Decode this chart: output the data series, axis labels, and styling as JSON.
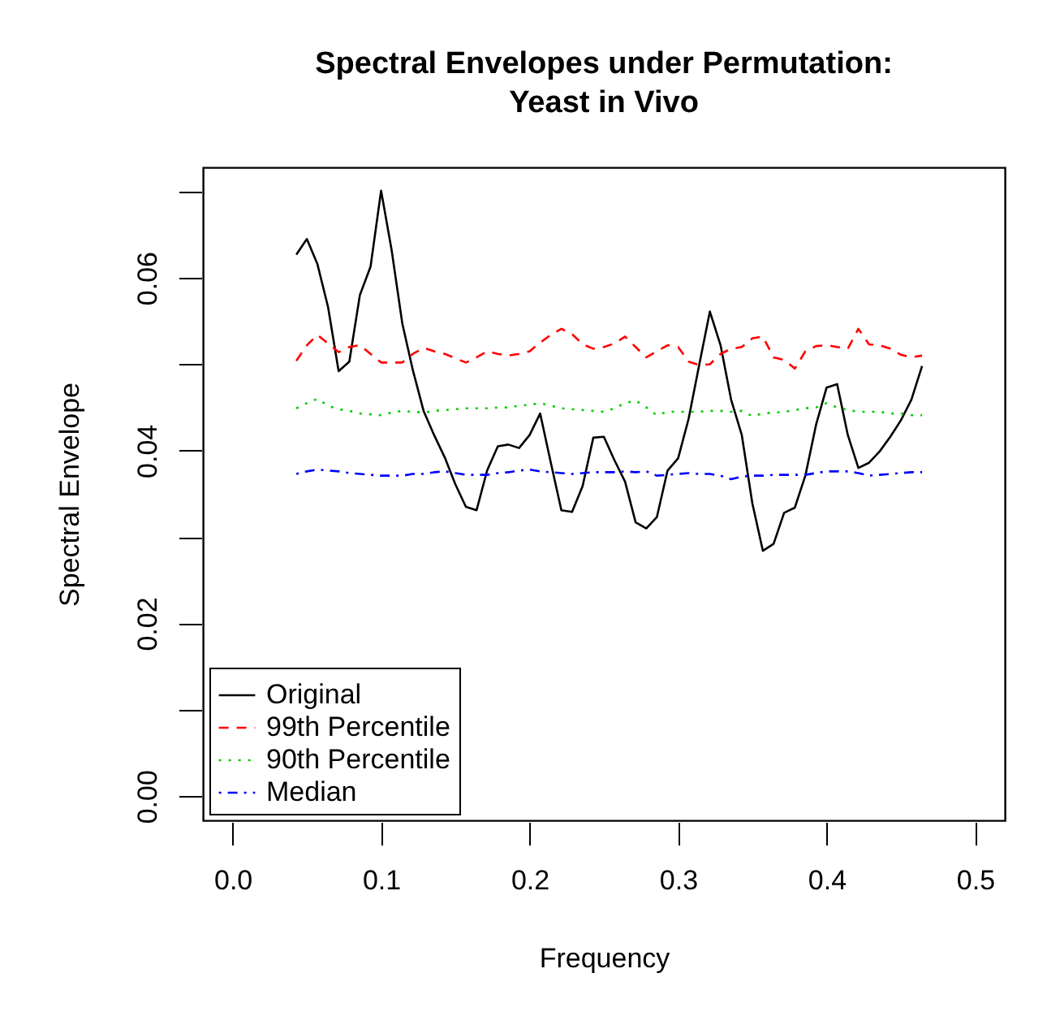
{
  "chart_data": {
    "type": "line",
    "title": "Spectral Envelopes under Permutation: Yeast in Vivo",
    "xlabel": "Frequency",
    "ylabel": "Spectral Envelope",
    "x": [
      0.0429,
      0.05,
      0.0571,
      0.0643,
      0.0714,
      0.0786,
      0.0857,
      0.0929,
      0.1,
      0.1071,
      0.1143,
      0.1214,
      0.1286,
      0.1357,
      0.1429,
      0.15,
      0.1571,
      0.1643,
      0.1714,
      0.1786,
      0.1857,
      0.1929,
      0.2,
      0.2071,
      0.2143,
      0.2214,
      0.2286,
      0.2357,
      0.2429,
      0.25,
      0.2571,
      0.2643,
      0.2714,
      0.2786,
      0.2857,
      0.2929,
      0.3,
      0.3071,
      0.3143,
      0.3214,
      0.3286,
      0.3357,
      0.3429,
      0.35,
      0.3571,
      0.3643,
      0.3714,
      0.3786,
      0.3857,
      0.3929,
      0.4,
      0.4071,
      0.4143,
      0.4214,
      0.4286,
      0.4357,
      0.4429,
      0.45,
      0.4571,
      0.4643
    ],
    "series": [
      {
        "name": "Original",
        "color": "#000000",
        "line_style": "solid",
        "values": [
          0.0627,
          0.0645,
          0.0616,
          0.0566,
          0.0492,
          0.0503,
          0.058,
          0.0613,
          0.0701,
          0.0632,
          0.0547,
          0.0493,
          0.0446,
          0.0418,
          0.0392,
          0.0361,
          0.0335,
          0.0331,
          0.0377,
          0.0405,
          0.0407,
          0.0403,
          0.0418,
          0.0443,
          0.0386,
          0.0331,
          0.0329,
          0.0359,
          0.0415,
          0.0416,
          0.0389,
          0.0364,
          0.0317,
          0.031,
          0.0323,
          0.0377,
          0.0391,
          0.0437,
          0.05,
          0.0561,
          0.0522,
          0.0459,
          0.0418,
          0.0339,
          0.0284,
          0.0292,
          0.0328,
          0.0334,
          0.0371,
          0.043,
          0.0473,
          0.0477,
          0.0418,
          0.038,
          0.0386,
          0.0399,
          0.0416,
          0.0435,
          0.0459,
          0.0498
        ]
      },
      {
        "name": "99th Percentile",
        "color": "#ff0000",
        "line_style": "dashed",
        "values": [
          0.0504,
          0.0522,
          0.0534,
          0.0524,
          0.0514,
          0.052,
          0.0522,
          0.0512,
          0.0502,
          0.0502,
          0.0502,
          0.0512,
          0.0519,
          0.0515,
          0.0512,
          0.0507,
          0.0502,
          0.0508,
          0.0515,
          0.0512,
          0.051,
          0.0512,
          0.0515,
          0.0525,
          0.0534,
          0.0541,
          0.0535,
          0.0523,
          0.0518,
          0.052,
          0.0524,
          0.0532,
          0.052,
          0.0508,
          0.0515,
          0.0522,
          0.052,
          0.0503,
          0.0499,
          0.05,
          0.0512,
          0.0518,
          0.052,
          0.053,
          0.0532,
          0.0508,
          0.0505,
          0.0495,
          0.0515,
          0.0521,
          0.0522,
          0.052,
          0.0518,
          0.0541,
          0.0523,
          0.0522,
          0.0518,
          0.0511,
          0.0508,
          0.051
        ]
      },
      {
        "name": "90th Percentile",
        "color": "#00cd00",
        "line_style": "dotted",
        "values": [
          0.0449,
          0.0455,
          0.046,
          0.0452,
          0.0448,
          0.0446,
          0.0443,
          0.0442,
          0.0441,
          0.0444,
          0.0446,
          0.0445,
          0.0444,
          0.0446,
          0.0447,
          0.0448,
          0.0449,
          0.0449,
          0.0449,
          0.045,
          0.045,
          0.0452,
          0.0453,
          0.0455,
          0.0452,
          0.0449,
          0.0448,
          0.0447,
          0.0446,
          0.0445,
          0.0449,
          0.0455,
          0.0458,
          0.045,
          0.0441,
          0.0445,
          0.0445,
          0.0445,
          0.0445,
          0.0446,
          0.0446,
          0.0445,
          0.0446,
          0.044,
          0.0443,
          0.0444,
          0.0445,
          0.0447,
          0.0449,
          0.045,
          0.0455,
          0.045,
          0.0447,
          0.0445,
          0.0445,
          0.0445,
          0.0443,
          0.0443,
          0.0441,
          0.0441
        ]
      },
      {
        "name": "Median",
        "color": "#0000ff",
        "line_style": "dashdot",
        "values": [
          0.0373,
          0.0376,
          0.0378,
          0.0377,
          0.0376,
          0.0374,
          0.0373,
          0.0372,
          0.0371,
          0.0371,
          0.0371,
          0.0373,
          0.0373,
          0.0375,
          0.0376,
          0.0374,
          0.0372,
          0.0372,
          0.0372,
          0.0374,
          0.0375,
          0.0377,
          0.0378,
          0.0376,
          0.0375,
          0.0374,
          0.0373,
          0.0374,
          0.0375,
          0.0375,
          0.0375,
          0.0376,
          0.0375,
          0.0376,
          0.0371,
          0.0372,
          0.0373,
          0.0374,
          0.0373,
          0.0373,
          0.0371,
          0.0367,
          0.037,
          0.0371,
          0.0371,
          0.0372,
          0.0372,
          0.0372,
          0.0372,
          0.0374,
          0.0376,
          0.0376,
          0.0376,
          0.0374,
          0.0371,
          0.0372,
          0.0373,
          0.0374,
          0.0375,
          0.0375
        ]
      }
    ],
    "xlim": [
      -0.02,
      0.52
    ],
    "xticks": [
      {
        "value": 0,
        "label": "0.0"
      },
      {
        "value": 0.1,
        "label": "0.1"
      },
      {
        "value": 0.2,
        "label": "0.2"
      },
      {
        "value": 0.3,
        "label": "0.3"
      },
      {
        "value": 0.4,
        "label": "0.4"
      },
      {
        "value": 0.5,
        "label": "0.5"
      }
    ],
    "ylim": [
      -0.0028,
      0.0728
    ],
    "yticks": [
      {
        "value": 0,
        "label": "0.00"
      },
      {
        "value": 0.01,
        "label": null
      },
      {
        "value": 0.02,
        "label": "0.02"
      },
      {
        "value": 0.03,
        "label": null
      },
      {
        "value": 0.04,
        "label": "0.04"
      },
      {
        "value": 0.05,
        "label": null
      },
      {
        "value": 0.06,
        "label": "0.06"
      },
      {
        "value": 0.07,
        "label": null
      }
    ],
    "grid": false,
    "legend": "bottom left",
    "marker": "none"
  }
}
